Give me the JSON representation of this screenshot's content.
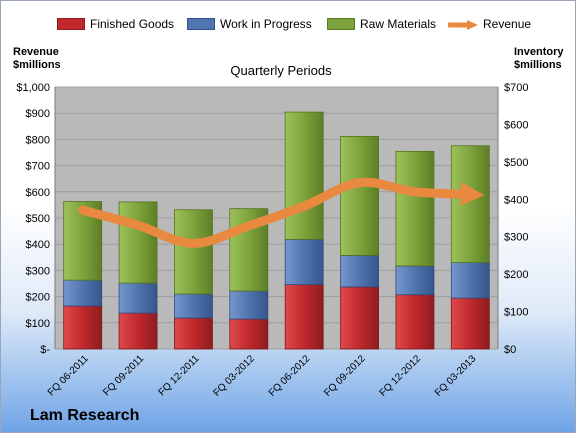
{
  "legend": {
    "finished_goods": "Finished Goods",
    "wip": "Work in Progress",
    "raw": "Raw Materials",
    "revenue": "Revenue"
  },
  "title": "Quarterly Periods",
  "left_axis_title": [
    "Revenue",
    "$millions"
  ],
  "right_axis_title": [
    "Inventory",
    "$millions"
  ],
  "company": "Lam Research",
  "colors": {
    "finished_goods": "#c0282c",
    "wip": "#4f74b0",
    "raw": "#7fa33c",
    "revenue": "#e8893f",
    "plot_bg": "#b9b9b9"
  },
  "chart_data": {
    "type": "bar",
    "stacked": true,
    "categories": [
      "FQ 06-2011",
      "FQ 09-2011",
      "FQ 12-2011",
      "FQ 03-2012",
      "FQ 06-2012",
      "FQ 09-2012",
      "FQ 12-2012",
      "FQ 03-2013"
    ],
    "left_axis": {
      "ticks": [
        "$-",
        "$100",
        "$200",
        "$300",
        "$400",
        "$500",
        "$600",
        "$700",
        "$800",
        "$900",
        "$1,000"
      ],
      "ylim": [
        0,
        1000
      ]
    },
    "right_axis": {
      "ticks": [
        "$0",
        "$100",
        "$200",
        "$300",
        "$400",
        "$500",
        "$600",
        "$700"
      ],
      "ylim": [
        0,
        700
      ]
    },
    "series": [
      {
        "name": "Finished Goods",
        "axis": "right",
        "values": [
          115,
          96,
          83,
          80,
          172,
          166,
          145,
          136
        ]
      },
      {
        "name": "Work in Progress",
        "axis": "right",
        "values": [
          69,
          80,
          64,
          75,
          121,
          84,
          77,
          95
        ]
      },
      {
        "name": "Raw Materials",
        "axis": "right",
        "values": [
          210,
          217,
          225,
          220,
          340,
          318,
          306,
          312
        ]
      },
      {
        "name": "Revenue",
        "type": "line",
        "axis": "left",
        "values": [
          530,
          472,
          403,
          470,
          545,
          635,
          600,
          590
        ]
      }
    ],
    "grid": true,
    "legend_position": "top"
  }
}
